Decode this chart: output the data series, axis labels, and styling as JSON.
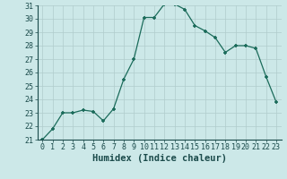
{
  "x": [
    0,
    1,
    2,
    3,
    4,
    5,
    6,
    7,
    8,
    9,
    10,
    11,
    12,
    13,
    14,
    15,
    16,
    17,
    18,
    19,
    20,
    21,
    22,
    23
  ],
  "y": [
    21.0,
    21.8,
    23.0,
    23.0,
    23.2,
    23.1,
    22.4,
    23.3,
    25.5,
    27.0,
    30.1,
    30.1,
    31.1,
    31.1,
    30.7,
    29.5,
    29.1,
    28.6,
    27.5,
    28.0,
    28.0,
    27.8,
    25.7,
    23.8
  ],
  "xlabel": "Humidex (Indice chaleur)",
  "ylim": [
    21,
    31
  ],
  "yticks": [
    21,
    22,
    23,
    24,
    25,
    26,
    27,
    28,
    29,
    30,
    31
  ],
  "xticks": [
    0,
    1,
    2,
    3,
    4,
    5,
    6,
    7,
    8,
    9,
    10,
    11,
    12,
    13,
    14,
    15,
    16,
    17,
    18,
    19,
    20,
    21,
    22,
    23
  ],
  "line_color": "#1a6b5a",
  "marker_color": "#1a6b5a",
  "bg_color": "#cce8e8",
  "grid_color": "#b0cccc",
  "text_color": "#1a4a4a",
  "xlabel_fontsize": 7.5,
  "tick_fontsize": 6.0
}
